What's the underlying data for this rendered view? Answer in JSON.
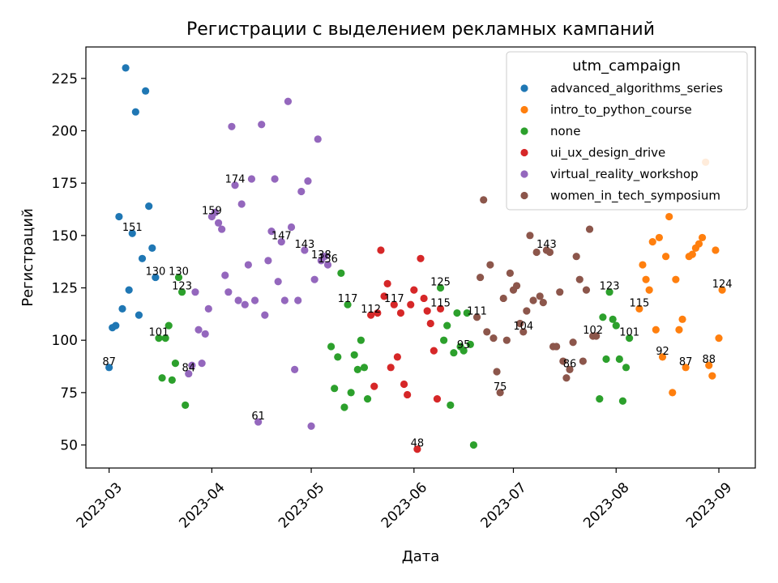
{
  "chart_data": {
    "type": "scatter",
    "title": "Регистрации с выделением рекламных кампаний",
    "xlabel": "Дата",
    "ylabel": "Регистраций",
    "x_axis_type": "date",
    "xlim": [
      "2023-02-22",
      "2023-09-12"
    ],
    "ylim": [
      39,
      240
    ],
    "x_ticks": [
      "2023-03-01",
      "2023-04-01",
      "2023-05-01",
      "2023-06-01",
      "2023-07-01",
      "2023-08-01",
      "2023-09-01"
    ],
    "x_tick_labels": [
      "2023-03",
      "2023-04",
      "2023-05",
      "2023-06",
      "2023-07",
      "2023-08",
      "2023-09"
    ],
    "x_tick_rotation": 45,
    "y_ticks": [
      50,
      75,
      100,
      125,
      150,
      175,
      200,
      225
    ],
    "grid": false,
    "legend": {
      "title": "utm_campaign",
      "position": "upper-right"
    },
    "series": [
      {
        "name": "advanced_algorithms_series",
        "color": "#1f77b4",
        "points": [
          {
            "x": "2023-03-01",
            "y": 87,
            "label": "87"
          },
          {
            "x": "2023-03-02",
            "y": 106
          },
          {
            "x": "2023-03-03",
            "y": 107
          },
          {
            "x": "2023-03-04",
            "y": 159
          },
          {
            "x": "2023-03-05",
            "y": 115
          },
          {
            "x": "2023-03-06",
            "y": 230
          },
          {
            "x": "2023-03-07",
            "y": 124
          },
          {
            "x": "2023-03-08",
            "y": 151,
            "label": "151"
          },
          {
            "x": "2023-03-09",
            "y": 209
          },
          {
            "x": "2023-03-10",
            "y": 112
          },
          {
            "x": "2023-03-11",
            "y": 139
          },
          {
            "x": "2023-03-12",
            "y": 219
          },
          {
            "x": "2023-03-13",
            "y": 164
          },
          {
            "x": "2023-03-14",
            "y": 144
          },
          {
            "x": "2023-03-15",
            "y": 130,
            "label": "130"
          }
        ]
      },
      {
        "name": "intro_to_python_course",
        "color": "#ff7f0e",
        "points": [
          {
            "x": "2023-08-08",
            "y": 115,
            "label": "115"
          },
          {
            "x": "2023-08-09",
            "y": 136
          },
          {
            "x": "2023-08-10",
            "y": 129
          },
          {
            "x": "2023-08-11",
            "y": 124
          },
          {
            "x": "2023-08-12",
            "y": 147
          },
          {
            "x": "2023-08-13",
            "y": 105
          },
          {
            "x": "2023-08-14",
            "y": 149
          },
          {
            "x": "2023-08-15",
            "y": 92,
            "label": "92"
          },
          {
            "x": "2023-08-16",
            "y": 140
          },
          {
            "x": "2023-08-17",
            "y": 159
          },
          {
            "x": "2023-08-18",
            "y": 75
          },
          {
            "x": "2023-08-19",
            "y": 129
          },
          {
            "x": "2023-08-20",
            "y": 105
          },
          {
            "x": "2023-08-21",
            "y": 110
          },
          {
            "x": "2023-08-22",
            "y": 87,
            "label": "87"
          },
          {
            "x": "2023-08-23",
            "y": 140
          },
          {
            "x": "2023-08-24",
            "y": 141
          },
          {
            "x": "2023-08-25",
            "y": 144
          },
          {
            "x": "2023-08-26",
            "y": 146
          },
          {
            "x": "2023-08-27",
            "y": 149
          },
          {
            "x": "2023-08-28",
            "y": 185
          },
          {
            "x": "2023-08-29",
            "y": 88,
            "label": "88"
          },
          {
            "x": "2023-08-30",
            "y": 83
          },
          {
            "x": "2023-08-31",
            "y": 143
          },
          {
            "x": "2023-09-01",
            "y": 101
          },
          {
            "x": "2023-09-02",
            "y": 124,
            "label": "124"
          }
        ]
      },
      {
        "name": "none",
        "color": "#2ca02c",
        "points": [
          {
            "x": "2023-03-16",
            "y": 101,
            "label": "101"
          },
          {
            "x": "2023-03-17",
            "y": 82
          },
          {
            "x": "2023-03-18",
            "y": 101
          },
          {
            "x": "2023-03-19",
            "y": 107
          },
          {
            "x": "2023-03-20",
            "y": 81
          },
          {
            "x": "2023-03-21",
            "y": 89
          },
          {
            "x": "2023-03-22",
            "y": 130,
            "label": "130"
          },
          {
            "x": "2023-03-23",
            "y": 123,
            "label": "123"
          },
          {
            "x": "2023-03-24",
            "y": 69
          },
          {
            "x": "2023-05-07",
            "y": 97
          },
          {
            "x": "2023-05-08",
            "y": 77
          },
          {
            "x": "2023-05-09",
            "y": 92
          },
          {
            "x": "2023-05-10",
            "y": 132
          },
          {
            "x": "2023-05-11",
            "y": 68
          },
          {
            "x": "2023-05-12",
            "y": 117,
            "label": "117"
          },
          {
            "x": "2023-05-13",
            "y": 75
          },
          {
            "x": "2023-05-14",
            "y": 93
          },
          {
            "x": "2023-05-15",
            "y": 86
          },
          {
            "x": "2023-05-16",
            "y": 100
          },
          {
            "x": "2023-05-17",
            "y": 87
          },
          {
            "x": "2023-05-18",
            "y": 72
          },
          {
            "x": "2023-06-09",
            "y": 125,
            "label": "125"
          },
          {
            "x": "2023-06-10",
            "y": 100
          },
          {
            "x": "2023-06-11",
            "y": 107
          },
          {
            "x": "2023-06-12",
            "y": 69
          },
          {
            "x": "2023-06-13",
            "y": 94
          },
          {
            "x": "2023-06-14",
            "y": 113
          },
          {
            "x": "2023-06-15",
            "y": 97
          },
          {
            "x": "2023-06-16",
            "y": 95,
            "label": "95"
          },
          {
            "x": "2023-06-17",
            "y": 113
          },
          {
            "x": "2023-06-18",
            "y": 98
          },
          {
            "x": "2023-06-19",
            "y": 50
          },
          {
            "x": "2023-07-27",
            "y": 72
          },
          {
            "x": "2023-07-28",
            "y": 111
          },
          {
            "x": "2023-07-29",
            "y": 91
          },
          {
            "x": "2023-07-30",
            "y": 123,
            "label": "123"
          },
          {
            "x": "2023-07-31",
            "y": 110
          },
          {
            "x": "2023-08-01",
            "y": 107
          },
          {
            "x": "2023-08-02",
            "y": 91
          },
          {
            "x": "2023-08-03",
            "y": 71
          },
          {
            "x": "2023-08-04",
            "y": 87
          },
          {
            "x": "2023-08-05",
            "y": 101,
            "label": "101"
          }
        ]
      },
      {
        "name": "ui_ux_design_drive",
        "color": "#d62728",
        "points": [
          {
            "x": "2023-05-19",
            "y": 112,
            "label": "112"
          },
          {
            "x": "2023-05-20",
            "y": 78
          },
          {
            "x": "2023-05-21",
            "y": 113
          },
          {
            "x": "2023-05-22",
            "y": 143
          },
          {
            "x": "2023-05-23",
            "y": 121
          },
          {
            "x": "2023-05-24",
            "y": 127
          },
          {
            "x": "2023-05-25",
            "y": 87
          },
          {
            "x": "2023-05-26",
            "y": 117,
            "label": "117"
          },
          {
            "x": "2023-05-27",
            "y": 92
          },
          {
            "x": "2023-05-28",
            "y": 113
          },
          {
            "x": "2023-05-29",
            "y": 79
          },
          {
            "x": "2023-05-30",
            "y": 74
          },
          {
            "x": "2023-05-31",
            "y": 117
          },
          {
            "x": "2023-06-01",
            "y": 124
          },
          {
            "x": "2023-06-02",
            "y": 48,
            "label": "48"
          },
          {
            "x": "2023-06-03",
            "y": 139
          },
          {
            "x": "2023-06-04",
            "y": 120
          },
          {
            "x": "2023-06-05",
            "y": 114
          },
          {
            "x": "2023-06-06",
            "y": 108
          },
          {
            "x": "2023-06-07",
            "y": 95
          },
          {
            "x": "2023-06-08",
            "y": 72
          },
          {
            "x": "2023-06-09",
            "y": 115,
            "label": "115"
          }
        ]
      },
      {
        "name": "virtual_reality_workshop",
        "color": "#9467bd",
        "points": [
          {
            "x": "2023-03-25",
            "y": 84,
            "label": "84"
          },
          {
            "x": "2023-03-26",
            "y": 88
          },
          {
            "x": "2023-03-27",
            "y": 123
          },
          {
            "x": "2023-03-28",
            "y": 105
          },
          {
            "x": "2023-03-29",
            "y": 89
          },
          {
            "x": "2023-03-30",
            "y": 103
          },
          {
            "x": "2023-03-31",
            "y": 115
          },
          {
            "x": "2023-04-01",
            "y": 159,
            "label": "159"
          },
          {
            "x": "2023-04-02",
            "y": 161
          },
          {
            "x": "2023-04-03",
            "y": 156
          },
          {
            "x": "2023-04-04",
            "y": 153
          },
          {
            "x": "2023-04-05",
            "y": 131
          },
          {
            "x": "2023-04-06",
            "y": 123
          },
          {
            "x": "2023-04-07",
            "y": 202
          },
          {
            "x": "2023-04-08",
            "y": 174,
            "label": "174"
          },
          {
            "x": "2023-04-09",
            "y": 119
          },
          {
            "x": "2023-04-10",
            "y": 165
          },
          {
            "x": "2023-04-11",
            "y": 117
          },
          {
            "x": "2023-04-12",
            "y": 136
          },
          {
            "x": "2023-04-13",
            "y": 177
          },
          {
            "x": "2023-04-14",
            "y": 119
          },
          {
            "x": "2023-04-15",
            "y": 61,
            "label": "61"
          },
          {
            "x": "2023-04-16",
            "y": 203
          },
          {
            "x": "2023-04-17",
            "y": 112
          },
          {
            "x": "2023-04-18",
            "y": 138
          },
          {
            "x": "2023-04-19",
            "y": 152
          },
          {
            "x": "2023-04-20",
            "y": 177
          },
          {
            "x": "2023-04-21",
            "y": 128
          },
          {
            "x": "2023-04-22",
            "y": 147,
            "label": "147"
          },
          {
            "x": "2023-04-23",
            "y": 119
          },
          {
            "x": "2023-04-24",
            "y": 214
          },
          {
            "x": "2023-04-25",
            "y": 154
          },
          {
            "x": "2023-04-26",
            "y": 86
          },
          {
            "x": "2023-04-27",
            "y": 119
          },
          {
            "x": "2023-04-28",
            "y": 171
          },
          {
            "x": "2023-04-29",
            "y": 143,
            "label": "143"
          },
          {
            "x": "2023-04-30",
            "y": 176
          },
          {
            "x": "2023-05-01",
            "y": 59
          },
          {
            "x": "2023-05-02",
            "y": 129
          },
          {
            "x": "2023-05-03",
            "y": 196
          },
          {
            "x": "2023-05-04",
            "y": 138,
            "label": "138"
          },
          {
            "x": "2023-05-05",
            "y": 140
          },
          {
            "x": "2023-05-06",
            "y": 136,
            "label": "136"
          }
        ]
      },
      {
        "name": "women_in_tech_symposium",
        "color": "#8c564b",
        "points": [
          {
            "x": "2023-06-20",
            "y": 111,
            "label": "111"
          },
          {
            "x": "2023-06-21",
            "y": 130
          },
          {
            "x": "2023-06-22",
            "y": 167
          },
          {
            "x": "2023-06-23",
            "y": 104
          },
          {
            "x": "2023-06-24",
            "y": 136
          },
          {
            "x": "2023-06-25",
            "y": 101
          },
          {
            "x": "2023-06-26",
            "y": 85
          },
          {
            "x": "2023-06-27",
            "y": 75,
            "label": "75"
          },
          {
            "x": "2023-06-28",
            "y": 120
          },
          {
            "x": "2023-06-29",
            "y": 100
          },
          {
            "x": "2023-06-30",
            "y": 132
          },
          {
            "x": "2023-07-01",
            "y": 124
          },
          {
            "x": "2023-07-02",
            "y": 126
          },
          {
            "x": "2023-07-03",
            "y": 108
          },
          {
            "x": "2023-07-04",
            "y": 104,
            "label": "104"
          },
          {
            "x": "2023-07-05",
            "y": 114
          },
          {
            "x": "2023-07-06",
            "y": 150
          },
          {
            "x": "2023-07-07",
            "y": 119
          },
          {
            "x": "2023-07-08",
            "y": 142
          },
          {
            "x": "2023-07-09",
            "y": 121
          },
          {
            "x": "2023-07-10",
            "y": 118
          },
          {
            "x": "2023-07-11",
            "y": 143,
            "label": "143"
          },
          {
            "x": "2023-07-12",
            "y": 142
          },
          {
            "x": "2023-07-13",
            "y": 97
          },
          {
            "x": "2023-07-14",
            "y": 97
          },
          {
            "x": "2023-07-15",
            "y": 123
          },
          {
            "x": "2023-07-16",
            "y": 90
          },
          {
            "x": "2023-07-17",
            "y": 82
          },
          {
            "x": "2023-07-18",
            "y": 86,
            "label": "86"
          },
          {
            "x": "2023-07-19",
            "y": 99
          },
          {
            "x": "2023-07-20",
            "y": 140
          },
          {
            "x": "2023-07-21",
            "y": 129
          },
          {
            "x": "2023-07-22",
            "y": 90
          },
          {
            "x": "2023-07-23",
            "y": 124
          },
          {
            "x": "2023-07-24",
            "y": 153
          },
          {
            "x": "2023-07-25",
            "y": 102,
            "label": "102"
          },
          {
            "x": "2023-07-26",
            "y": 102
          }
        ]
      }
    ]
  }
}
